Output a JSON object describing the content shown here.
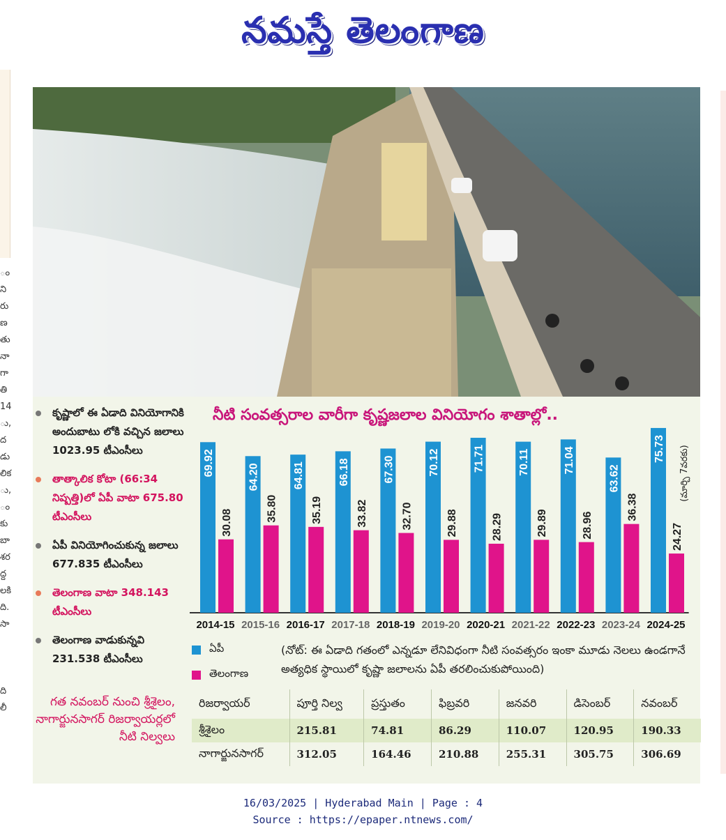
{
  "masthead": {
    "title": "నమస్తే తెలంగాణ"
  },
  "margin_text": [
    "ం",
    "ని",
    "రు",
    "ణ",
    "తు",
    "నా",
    "గా",
    "తి",
    "14",
    "ు,",
    "ద",
    "డు",
    "లిక",
    "ు,",
    "ం",
    "కు",
    "బా",
    "శర",
    "ద్ద",
    "లకి",
    "ది.",
    "సా",
    "",
    "",
    "",
    "ది",
    "లీ"
  ],
  "bullets": [
    {
      "text": "కృష్ణాలో ఈ ఏడాది వినియోగానికి అందుబాటు లోకి వచ్చిన జలాలు 1023.95 టీఎంసీలు",
      "style": "normal"
    },
    {
      "text": "తాత్కాలిక కోటా (66:34 నిష్పత్తి)లో ఏపీ వాటా 675.80 టీఎంసీలు",
      "style": "pink"
    },
    {
      "text": "ఏపీ వినియోగించుకున్న జలాలు 677.835 టీఎంసీలు",
      "style": "normal"
    },
    {
      "text": "తెలంగాణ వాటా 348.143 టీఎంసీలు",
      "style": "pink"
    },
    {
      "text": "తెలంగాణ వాడుకున్నవి 231.538 టీఎంసీలు",
      "style": "normal"
    }
  ],
  "chart_data": {
    "type": "bar",
    "title": "నీటి సంవత్సరాల వారీగా కృష్ణజలాల వినియోగం శాతాల్లో..",
    "categories": [
      "2014-15",
      "2015-16",
      "2016-17",
      "2017-18",
      "2018-19",
      "2019-20",
      "2020-21",
      "2021-22",
      "2022-23",
      "2023-24",
      "2024-25"
    ],
    "series": [
      {
        "name": "ఏపీ",
        "color": "#1e93d2",
        "values": [
          69.92,
          64.2,
          64.81,
          66.18,
          67.3,
          70.12,
          71.71,
          70.11,
          71.04,
          63.62,
          75.73
        ]
      },
      {
        "name": "తెలంగాణ",
        "color": "#e0148a",
        "values": [
          30.08,
          35.8,
          35.19,
          33.82,
          32.7,
          29.88,
          28.29,
          29.89,
          28.96,
          36.38,
          24.27
        ]
      }
    ],
    "annotation": "(మార్చి 7వరకు)",
    "ylim": [
      0,
      80
    ],
    "legend": "bottom-left",
    "grid": false
  },
  "note": "(నోట్: ఈ ఏడాది గతంలో ఎన్నడూ లేనివిధంగా నీటి సంవత్సరం ఇంకా మూడు నెలలు ఉండగానే అత్యధిక స్థాయిలో కృష్ణా జలాలను ఏపీ తరలించుకుపోయింది)",
  "table": {
    "caption": "గత నవంబర్ నుంచి శ్రీశైలం, నాగార్జునసాగర్ రిజర్వాయర్లలో నీటి నిల్వలు",
    "headers": [
      "రిజర్వాయర్",
      "పూర్తి నిల్వ",
      "ప్రస్తుతం",
      "ఫిబ్రవరి",
      "జనవరి",
      "డిసెంబర్",
      "నవంబర్"
    ],
    "rows": [
      [
        "శ్రీశైలం",
        "215.81",
        "74.81",
        "86.29",
        "110.07",
        "120.95",
        "190.33"
      ],
      [
        "నాగార్జునసాగర్",
        "312.05",
        "164.46",
        "210.88",
        "255.31",
        "305.75",
        "306.69"
      ]
    ]
  },
  "footer": {
    "line1": "16/03/2025 | Hyderabad Main | Page : 4",
    "line2": "Source : https://epaper.ntnews.com/"
  }
}
